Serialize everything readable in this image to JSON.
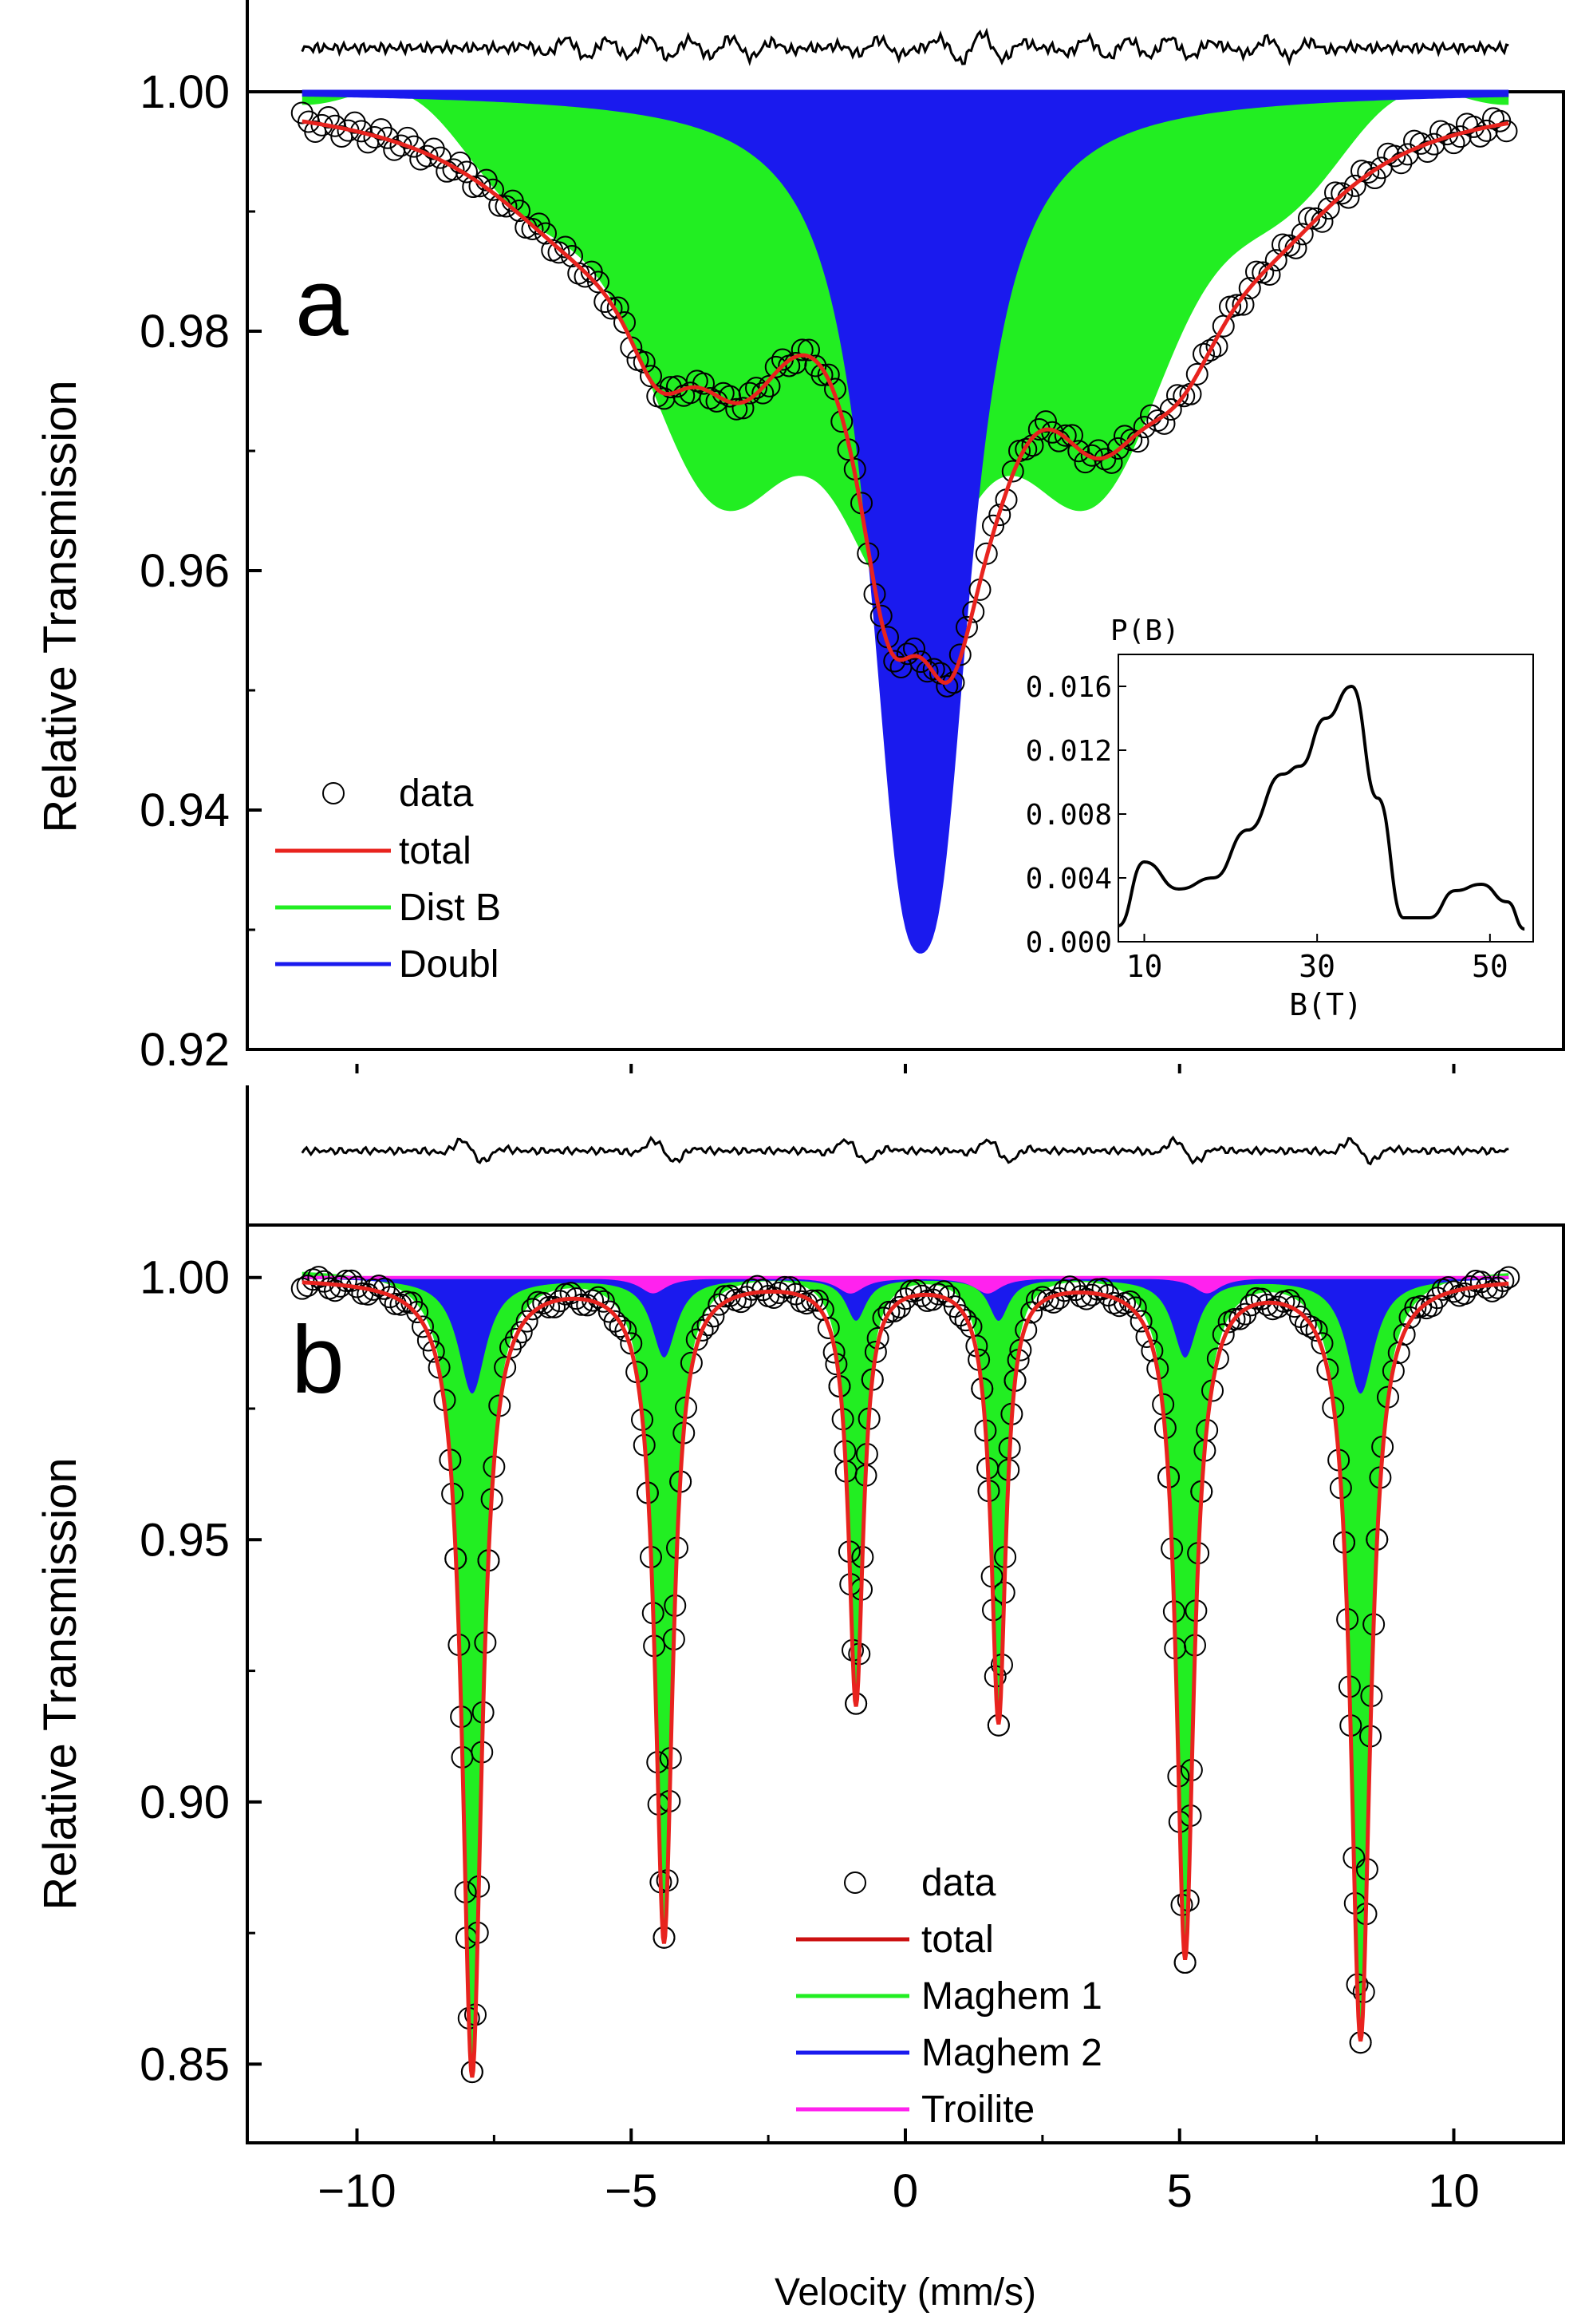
{
  "colors": {
    "total": "#e8231e",
    "dist_b": "#22ee22",
    "doubl": "#1a1aee",
    "maghem1": "#22ee22",
    "maghem2": "#1a1aee",
    "troilite": "#ff22ee",
    "data": "#000000"
  },
  "chart_data": [
    {
      "panel": "a",
      "type": "line",
      "panel_label": "a",
      "ylabel": "Relative Transmission",
      "xlim": [
        -12,
        12
      ],
      "ylim": [
        0.92,
        1.0
      ],
      "yticks": [
        "1.00",
        "0.98",
        "0.96",
        "0.94",
        "0.92"
      ],
      "legend": [
        "data",
        "total",
        "Dist B",
        "Doubl"
      ],
      "legend_position": "bottom-left",
      "dips": [
        {
          "x": -6.0,
          "depth": 0.008,
          "w": 2.2
        },
        {
          "x": -4.5,
          "depth": 0.01,
          "w": 0.8
        },
        {
          "x": -3.0,
          "depth": 0.016,
          "w": 1.3
        },
        {
          "x": -0.3,
          "depth": 0.028,
          "w": 0.8
        },
        {
          "x": 0.8,
          "depth": 0.026,
          "w": 0.8
        },
        {
          "x": 1.6,
          "depth": 0.01,
          "w": 1.0
        },
        {
          "x": 3.5,
          "depth": 0.018,
          "w": 1.3
        },
        {
          "x": 5.0,
          "depth": 0.012,
          "w": 1.2
        },
        {
          "x": 6.8,
          "depth": 0.006,
          "w": 1.8
        }
      ],
      "components": {
        "doubl": [
          {
            "x": -0.1,
            "depth": 0.045,
            "w": 0.75
          },
          {
            "x": 0.65,
            "depth": 0.045,
            "w": 0.75
          }
        ],
        "dist_b_min": [
          0.983,
          0.97,
          0.966,
          0.963,
          0.961,
          0.964,
          0.975,
          0.989
        ]
      },
      "residual": "present",
      "inset": {
        "type": "line",
        "ylabel": "P(B)",
        "xlabel": "B(T)",
        "xlim": [
          7,
          55
        ],
        "ylim": [
          0.0,
          0.018
        ],
        "xticks": [
          "10",
          "30",
          "50"
        ],
        "yticks": [
          "0.016",
          "0.012",
          "0.008",
          "0.004",
          "0.000"
        ],
        "x": [
          7,
          10,
          14,
          18,
          22,
          26,
          28,
          31,
          34,
          37,
          40,
          43,
          46,
          49,
          52,
          54
        ],
        "y": [
          0.001,
          0.005,
          0.0033,
          0.004,
          0.007,
          0.0105,
          0.011,
          0.014,
          0.016,
          0.009,
          0.0015,
          0.0015,
          0.0032,
          0.0036,
          0.0025,
          0.0008
        ]
      }
    },
    {
      "panel": "b",
      "type": "line",
      "panel_label": "b",
      "ylabel": "Relative Transmission",
      "xlabel": "Velocity (mm/s)",
      "xlim": [
        -12,
        12
      ],
      "ylim": [
        0.835,
        1.01
      ],
      "yticks": [
        "1.00",
        "0.95",
        "0.90",
        "0.85"
      ],
      "xticks": [
        "−10",
        "−5",
        "0",
        "5",
        "10"
      ],
      "legend": [
        "data",
        "total",
        "Maghem 1",
        "Maghem 2",
        "Troilite"
      ],
      "legend_position": "bottom-center",
      "peaks": [
        {
          "x": -7.9,
          "depth": 0.152,
          "maghem2": 0.022,
          "w": 0.62
        },
        {
          "x": -4.4,
          "depth": 0.124,
          "maghem2": 0.015,
          "w": 0.55
        },
        {
          "x": -0.9,
          "depth": 0.078,
          "maghem2": 0.008,
          "w": 0.45
        },
        {
          "x": 1.7,
          "depth": 0.082,
          "maghem2": 0.008,
          "w": 0.45
        },
        {
          "x": 5.1,
          "depth": 0.128,
          "maghem2": 0.015,
          "w": 0.55
        },
        {
          "x": 8.3,
          "depth": 0.145,
          "maghem2": 0.022,
          "w": 0.62
        }
      ],
      "troilite_peaks": [
        -4.6,
        -1.0,
        1.5,
        5.5
      ],
      "troilite_depth": 0.003,
      "residual": "present"
    }
  ]
}
